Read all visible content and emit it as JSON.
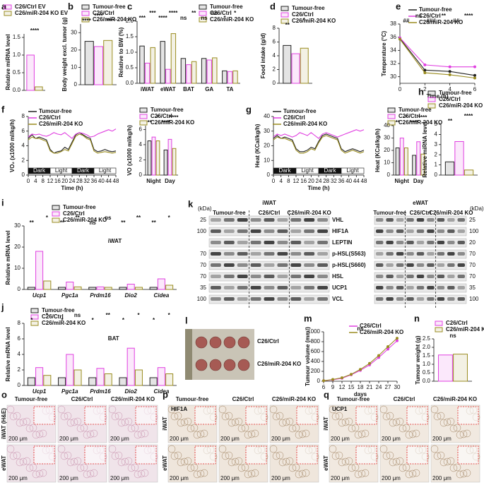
{
  "chart_data": [
    {
      "type": "bar",
      "panel": "a",
      "y_label": "Relative miRNA level",
      "ylim": [
        0,
        1.6
      ],
      "yticks": [
        {
          "value": 0,
          "label": "0.0"
        },
        0.5,
        {
          "value": 1,
          "label": "1.0"
        },
        1.5
      ],
      "series": [
        {
          "name": "C26/Ctrl EV",
          "color": "#e040e0",
          "values": [
            1.0
          ]
        },
        {
          "name": "C26/miR-204 KO EV",
          "color": "#9a8c20",
          "values": [
            0.1
          ]
        }
      ],
      "annotations": [
        "****"
      ]
    },
    {
      "type": "bar",
      "panel": "b",
      "y_label": "Body weight excl. tumor (g)",
      "ylim": [
        0,
        35
      ],
      "yticks": [
        0,
        10,
        20,
        30
      ],
      "series": [
        {
          "name": "Tumour-free",
          "color": "#222222",
          "values": [
            25
          ]
        },
        {
          "name": "C26/Ctrl",
          "color": "#e040e0",
          "values": [
            22
          ]
        },
        {
          "name": "C26/miR-204 KO",
          "color": "#9a8c20",
          "values": [
            25.5
          ]
        }
      ],
      "annotations": [
        "****",
        "****",
        "****"
      ]
    },
    {
      "type": "bar",
      "panel": "c",
      "y_label": "Relative to BW (%)",
      "ylim": [
        0,
        2
      ],
      "yticks": [
        {
          "value": 0,
          "label": "0.0"
        },
        0.5,
        {
          "value": 1,
          "label": "1.0"
        },
        1.5,
        {
          "value": 2,
          "label": "2.0"
        }
      ],
      "categories": [
        "iWAT",
        "eWAT",
        "BAT",
        "GA",
        "TA"
      ],
      "series": [
        {
          "name": "Tumour-free",
          "color": "#222222",
          "values": [
            1.2,
            1.35,
            0.8,
            0.8,
            0.4
          ]
        },
        {
          "name": "C26/Ctrl",
          "color": "#e040e0",
          "values": [
            0.65,
            0.45,
            0.6,
            0.75,
            0.38
          ]
        },
        {
          "name": "C26/miR-204 KO",
          "color": "#9a8c20",
          "values": [
            1.15,
            1.6,
            0.7,
            0.82,
            0.4
          ]
        }
      ],
      "annotations": [
        "***",
        "***",
        "****",
        "****",
        "ns",
        "**",
        "ns",
        "ns",
        "*",
        "*"
      ]
    },
    {
      "type": "bar",
      "panel": "d",
      "y_label": "Food intake (g/d)",
      "ylim": [
        0,
        8
      ],
      "yticks": [
        0,
        2,
        4,
        6,
        8
      ],
      "series": [
        {
          "name": "Tumour-free",
          "color": "#222222",
          "values": [
            5.5
          ]
        },
        {
          "name": "C26/Ctrl",
          "color": "#e040e0",
          "values": [
            4.3
          ]
        },
        {
          "name": "C26/miR-204 KO",
          "color": "#9a8c20",
          "values": [
            5.1
          ]
        }
      ],
      "annotations": [
        "**",
        "*"
      ]
    },
    {
      "type": "line",
      "panel": "e",
      "y_label": "Temperature (°C)",
      "x_label": "Time (h)",
      "markers": true,
      "x": [
        0,
        2,
        4,
        6
      ],
      "xlim": [
        0,
        6
      ],
      "xticks": [
        0,
        2,
        4,
        6
      ],
      "ylim": [
        29,
        38
      ],
      "yticks": [
        30,
        32,
        34,
        36,
        38
      ],
      "series": [
        {
          "name": "Tumour-free",
          "color": "#222222",
          "values": [
            35.8,
            31.0,
            30.8,
            30.2
          ]
        },
        {
          "name": "C26/Ctrl",
          "color": "#e040e0",
          "values": [
            35.9,
            31.8,
            31.5,
            31.5
          ]
        },
        {
          "name": "C26/miR-204 KO",
          "color": "#9a8c20",
          "values": [
            35.7,
            30.6,
            30.3,
            29.8
          ]
        }
      ],
      "annotations": [
        "##",
        "ns",
        "###",
        "**",
        "##",
        "****"
      ]
    },
    {
      "type": "line",
      "panel": "f",
      "y_label": "VO₂ (x1000 ml/kg/h)",
      "x_label": "Time (h)",
      "periods": [
        "Dark",
        "Light",
        "Dark",
        "Light"
      ],
      "x": [
        0,
        2,
        4,
        6,
        8,
        10,
        12,
        14,
        16,
        18,
        20,
        22,
        24,
        26,
        28,
        30,
        32,
        34,
        36,
        38,
        40,
        42,
        44,
        46,
        48
      ],
      "xlim": [
        0,
        48
      ],
      "xticks": [
        0,
        4,
        8,
        12,
        16,
        20,
        24,
        28,
        32,
        36,
        40,
        44,
        48
      ],
      "ylim": [
        0,
        8
      ],
      "yticks": [
        0,
        2,
        4,
        6,
        8
      ],
      "series": [
        {
          "name": "Tumour-free",
          "color": "#222222",
          "values": [
            5,
            5.5,
            5,
            5.2,
            5,
            4.8,
            3.5,
            3,
            3.2,
            3.3,
            3.8,
            3.5,
            4.5,
            5.5,
            5.8,
            5.5,
            5.2,
            5,
            3.5,
            3.2,
            3.3,
            3.5,
            3.3,
            3.2,
            3.3
          ]
        },
        {
          "name": "C26/Ctrl",
          "color": "#e040e0",
          "values": [
            5.2,
            5.6,
            5.5,
            5.6,
            5.4,
            5.3,
            5.5,
            5.8,
            5.6,
            5.5,
            5.8,
            5.4,
            5,
            5.6,
            5.8,
            5.7,
            5.5,
            5.2,
            5.3,
            5.6,
            5.8,
            6,
            6.2,
            6,
            6.3
          ]
        },
        {
          "name": "C26/miR-204 KO",
          "color": "#9a8c20",
          "values": [
            4.8,
            5.2,
            5,
            5,
            4.8,
            4.6,
            3.3,
            3,
            3,
            3.2,
            3.5,
            3.3,
            4.3,
            5.3,
            5.6,
            5.4,
            5,
            4.8,
            3.3,
            3,
            3.1,
            3.2,
            3.1,
            3,
            3.1
          ]
        }
      ]
    },
    {
      "type": "bar",
      "y_label": "VO (x1000 ml/kg/h)",
      "ylim": [
        0,
        6.5
      ],
      "yticks": [
        0,
        2,
        4,
        6
      ],
      "categories": [
        "Night",
        "Day"
      ],
      "series": [
        {
          "name": "Tumour-free",
          "color": "#222222",
          "values": [
            4.5,
            3.3
          ]
        },
        {
          "name": "C26/Ctrl",
          "color": "#e040e0",
          "values": [
            5,
            4.7
          ]
        },
        {
          "name": "C26/miR-204 KO",
          "color": "#9a8c20",
          "values": [
            4.5,
            3.5
          ]
        }
      ],
      "annotations": [
        "**",
        "*",
        "****",
        "****"
      ]
    },
    {
      "type": "line",
      "panel": "g",
      "y_label": "Heat (KCal/kg/h)",
      "x_label": "Time (h)",
      "periods": [
        "Dark",
        "Light",
        "Dark",
        "Light"
      ],
      "x": [
        0,
        2,
        4,
        6,
        8,
        10,
        12,
        14,
        16,
        18,
        20,
        22,
        24,
        26,
        28,
        30,
        32,
        34,
        36,
        38,
        40,
        42,
        44,
        46,
        48
      ],
      "xlim": [
        0,
        48
      ],
      "xticks": [
        0,
        4,
        8,
        12,
        16,
        20,
        24,
        28,
        32,
        36,
        40,
        44,
        48
      ],
      "ylim": [
        0,
        40
      ],
      "yticks": [
        0,
        10,
        20,
        30,
        40
      ],
      "series": [
        {
          "name": "Tumour-free",
          "color": "#222222",
          "values": [
            25,
            27,
            25,
            26,
            25,
            24,
            18,
            16,
            16,
            17,
            19,
            18,
            23,
            27,
            28,
            27,
            26,
            25,
            18,
            16,
            17,
            18,
            17,
            16,
            17
          ]
        },
        {
          "name": "C26/Ctrl",
          "color": "#e040e0",
          "values": [
            26,
            28,
            27,
            28,
            27,
            26,
            27,
            29,
            28,
            27,
            29,
            27,
            25,
            28,
            29,
            28,
            27,
            26,
            27,
            28,
            29,
            30,
            31,
            30,
            31
          ]
        },
        {
          "name": "C26/miR-204 KO",
          "color": "#9a8c20",
          "values": [
            24,
            26,
            25,
            25,
            24,
            23,
            17,
            15,
            15,
            16,
            18,
            17,
            22,
            26,
            27,
            26,
            25,
            24,
            17,
            15,
            16,
            17,
            16,
            15,
            16
          ]
        }
      ]
    },
    {
      "type": "bar",
      "y_label": "Heat (KCal/kg/h)",
      "ylim": [
        0,
        40
      ],
      "yticks": [
        0,
        10,
        20,
        30,
        40
      ],
      "categories": [
        "Night",
        "Day"
      ],
      "series": [
        {
          "name": "Tumour-free",
          "color": "#222222",
          "values": [
            22,
            16
          ]
        },
        {
          "name": "C26/Ctrl",
          "color": "#e040e0",
          "values": [
            30,
            27
          ]
        },
        {
          "name": "C26/miR-204 KO",
          "color": "#9a8c20",
          "values": [
            22,
            17
          ]
        }
      ],
      "annotations": [
        "**",
        "*",
        "****",
        "****"
      ]
    },
    {
      "type": "bar",
      "panel": "h",
      "y_label": "Relative miRNA level",
      "ylim": [
        0,
        5
      ],
      "yticks": [
        0,
        1,
        2,
        3,
        4,
        5
      ],
      "series": [
        {
          "name": "Tumour-free",
          "color": "#222222",
          "values": [
            1.3
          ]
        },
        {
          "name": "C26/Ctrl",
          "color": "#e040e0",
          "values": [
            3.3
          ]
        },
        {
          "name": "C26/miR-204 KO",
          "color": "#9a8c20",
          "values": [
            0.5
          ]
        }
      ],
      "annotations": [
        "**",
        "****"
      ]
    },
    {
      "type": "bar",
      "panel": "i",
      "subtitle": "iWAT",
      "italic_categories": true,
      "y_label": "Relative mRNA level",
      "ylim": [
        0,
        30
      ],
      "yticks": [
        0,
        10,
        20,
        30
      ],
      "categories": [
        "Ucp1",
        "Pgc1a",
        "Prdm16",
        "Dio2",
        "Cidea"
      ],
      "series": [
        {
          "name": "Tumour-free",
          "color": "#222222",
          "values": [
            1,
            1,
            1,
            1,
            1
          ]
        },
        {
          "name": "C26/Ctrl",
          "color": "#e040e0",
          "values": [
            18,
            3.5,
            1.2,
            2.5,
            5
          ]
        },
        {
          "name": "C26/miR-204 KO",
          "color": "#9a8c20",
          "values": [
            4,
            1.2,
            1,
            1,
            2
          ]
        }
      ],
      "annotations": [
        "**",
        "*",
        "**",
        "**",
        "ns",
        "ns",
        "**",
        "**",
        "**",
        "*"
      ]
    },
    {
      "type": "bar",
      "panel": "j",
      "subtitle": "BAT",
      "italic_categories": true,
      "y_label": "Relative mRNA level",
      "ylim": [
        0,
        8
      ],
      "yticks": [
        0,
        2,
        4,
        6,
        8
      ],
      "categories": [
        "Ucp1",
        "Pgc1a",
        "Prdm16",
        "Dio2",
        "Cidea"
      ],
      "series": [
        {
          "name": "Tumour-free",
          "color": "#222222",
          "values": [
            1,
            1,
            1,
            1,
            1
          ]
        },
        {
          "name": "C26/Ctrl",
          "color": "#e040e0",
          "values": [
            2.3,
            4,
            2.2,
            4.8,
            2.3
          ]
        },
        {
          "name": "C26/miR-204 KO",
          "color": "#9a8c20",
          "values": [
            1.3,
            2,
            1.5,
            2,
            1.5
          ]
        }
      ],
      "annotations": [
        "*",
        "*",
        "*",
        "ns",
        "*",
        "**",
        "*",
        "*",
        "*",
        "*"
      ]
    },
    {
      "type": "line",
      "panel": "m",
      "markers": true,
      "y_label": "Tumour volume (mm³)",
      "x_label": "days",
      "x": [
        6,
        9,
        12,
        15,
        18,
        21,
        24,
        27,
        30
      ],
      "xlim": [
        6,
        30
      ],
      "xticks": [
        6,
        9,
        12,
        15,
        18,
        21,
        24,
        27,
        30
      ],
      "ylim": [
        0,
        1000
      ],
      "yticks": [
        0,
        200,
        400,
        600,
        800,
        1000
      ],
      "series": [
        {
          "name": "C26/Ctrl",
          "color": "#e040e0",
          "values": [
            10,
            30,
            60,
            130,
            220,
            330,
            480,
            650,
            820
          ]
        },
        {
          "name": "C26/miR-204 KO",
          "color": "#9a8c20",
          "values": [
            10,
            35,
            70,
            140,
            240,
            360,
            520,
            700,
            870
          ]
        }
      ],
      "annotations": [
        "ns"
      ]
    },
    {
      "type": "bar",
      "panel": "n",
      "y_label": "Tumour weight (g)",
      "ylim": [
        0,
        2.5
      ],
      "yticks": [
        {
          "value": 0,
          "label": "0.0"
        },
        0.5,
        {
          "value": 1,
          "label": "1.0"
        },
        1.5,
        {
          "value": 2,
          "label": "2.0"
        },
        2.5
      ],
      "series": [
        {
          "name": "C26/Ctrl",
          "color": "#e040e0",
          "values": [
            1.55
          ]
        },
        {
          "name": "C26/miR-204 KO",
          "color": "#9a8c20",
          "values": [
            1.6
          ]
        }
      ],
      "annotations": [
        "ns"
      ]
    }
  ],
  "blot": {
    "panel": "k",
    "unit": "(kDa)",
    "tissues": [
      "iWAT",
      "eWAT"
    ],
    "groups": [
      "Tumour-free",
      "C26/Ctrl",
      "C26/miR-204 KO"
    ],
    "rows": [
      {
        "protein": "VHL",
        "kda_left": 25,
        "kda_right": 25
      },
      {
        "protein": "HIF1A",
        "kda_left": 100,
        "kda_right": 100
      },
      {
        "protein": "LEPTIN",
        "kda_left": null,
        "kda_right": 20
      },
      {
        "protein": "p-HSL(S563)",
        "kda_left": 70,
        "kda_right": 70
      },
      {
        "protein": "p-HSL(S660)",
        "kda_left": 70,
        "kda_right": 70
      },
      {
        "protein": "HSL",
        "kda_left": 70,
        "kda_right": 70
      },
      {
        "protein": "UCP1",
        "kda_left": 35,
        "kda_right": 35
      },
      {
        "protein": "VCL",
        "kda_left": 100,
        "kda_right": 100
      }
    ]
  },
  "tumour_photo": {
    "panel": "l",
    "labels": [
      "C26/Ctrl",
      "C26/miR-204 KO"
    ]
  },
  "histology": {
    "scale_bar": "200 μm",
    "columns": [
      "Tumour-free",
      "C26/Ctrl",
      "C26/miR-204 KO"
    ],
    "panels": [
      {
        "panel": "o",
        "rows": [
          "iWAT (H&E)",
          "eWAT"
        ]
      },
      {
        "panel": "p",
        "stain": "HIF1A",
        "rows": [
          "iWAT",
          "eWAT"
        ]
      },
      {
        "panel": "q",
        "stain": "UCP1",
        "rows": [
          "iWAT",
          "eWAT"
        ]
      }
    ]
  }
}
